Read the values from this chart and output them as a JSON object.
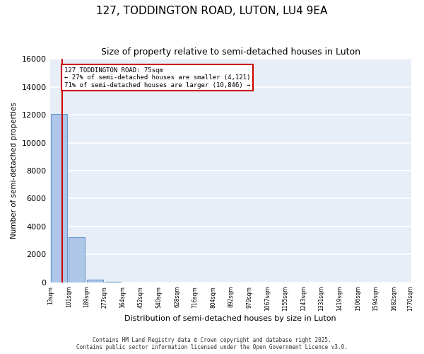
{
  "title": "127, TODDINGTON ROAD, LUTON, LU4 9EA",
  "subtitle": "Size of property relative to semi-detached houses in Luton",
  "xlabel": "Distribution of semi-detached houses by size in Luton",
  "ylabel": "Number of semi-detached properties",
  "bin_labels": [
    "13sqm",
    "101sqm",
    "189sqm",
    "277sqm",
    "364sqm",
    "452sqm",
    "540sqm",
    "628sqm",
    "716sqm",
    "804sqm",
    "892sqm",
    "979sqm",
    "1067sqm",
    "1155sqm",
    "1243sqm",
    "1331sqm",
    "1419sqm",
    "1506sqm",
    "1594sqm",
    "1682sqm",
    "1770sqm"
  ],
  "bar_values": [
    12050,
    3250,
    200,
    50,
    20,
    10,
    5,
    5,
    3,
    2,
    2,
    1,
    1,
    1,
    1,
    1,
    1,
    1,
    1,
    1
  ],
  "bar_color": "#aec6e8",
  "bar_edge_color": "#6699cc",
  "subject_size_sqm": 75,
  "subject_label": "127 TODDINGTON ROAD: 75sqm",
  "smaller_pct": 27,
  "smaller_count": 4121,
  "larger_pct": 71,
  "larger_count": 10846,
  "annotation_box_color": "#ffffff",
  "annotation_box_edge_color": "#cc0000",
  "vline_color": "#cc0000",
  "ylim": [
    0,
    16000
  ],
  "yticks": [
    0,
    2000,
    4000,
    6000,
    8000,
    10000,
    12000,
    14000,
    16000
  ],
  "footer": "Contains HM Land Registry data © Crown copyright and database right 2025.\nContains public sector information licensed under the Open Government Licence v3.0.",
  "bg_color": "#e8eef8"
}
